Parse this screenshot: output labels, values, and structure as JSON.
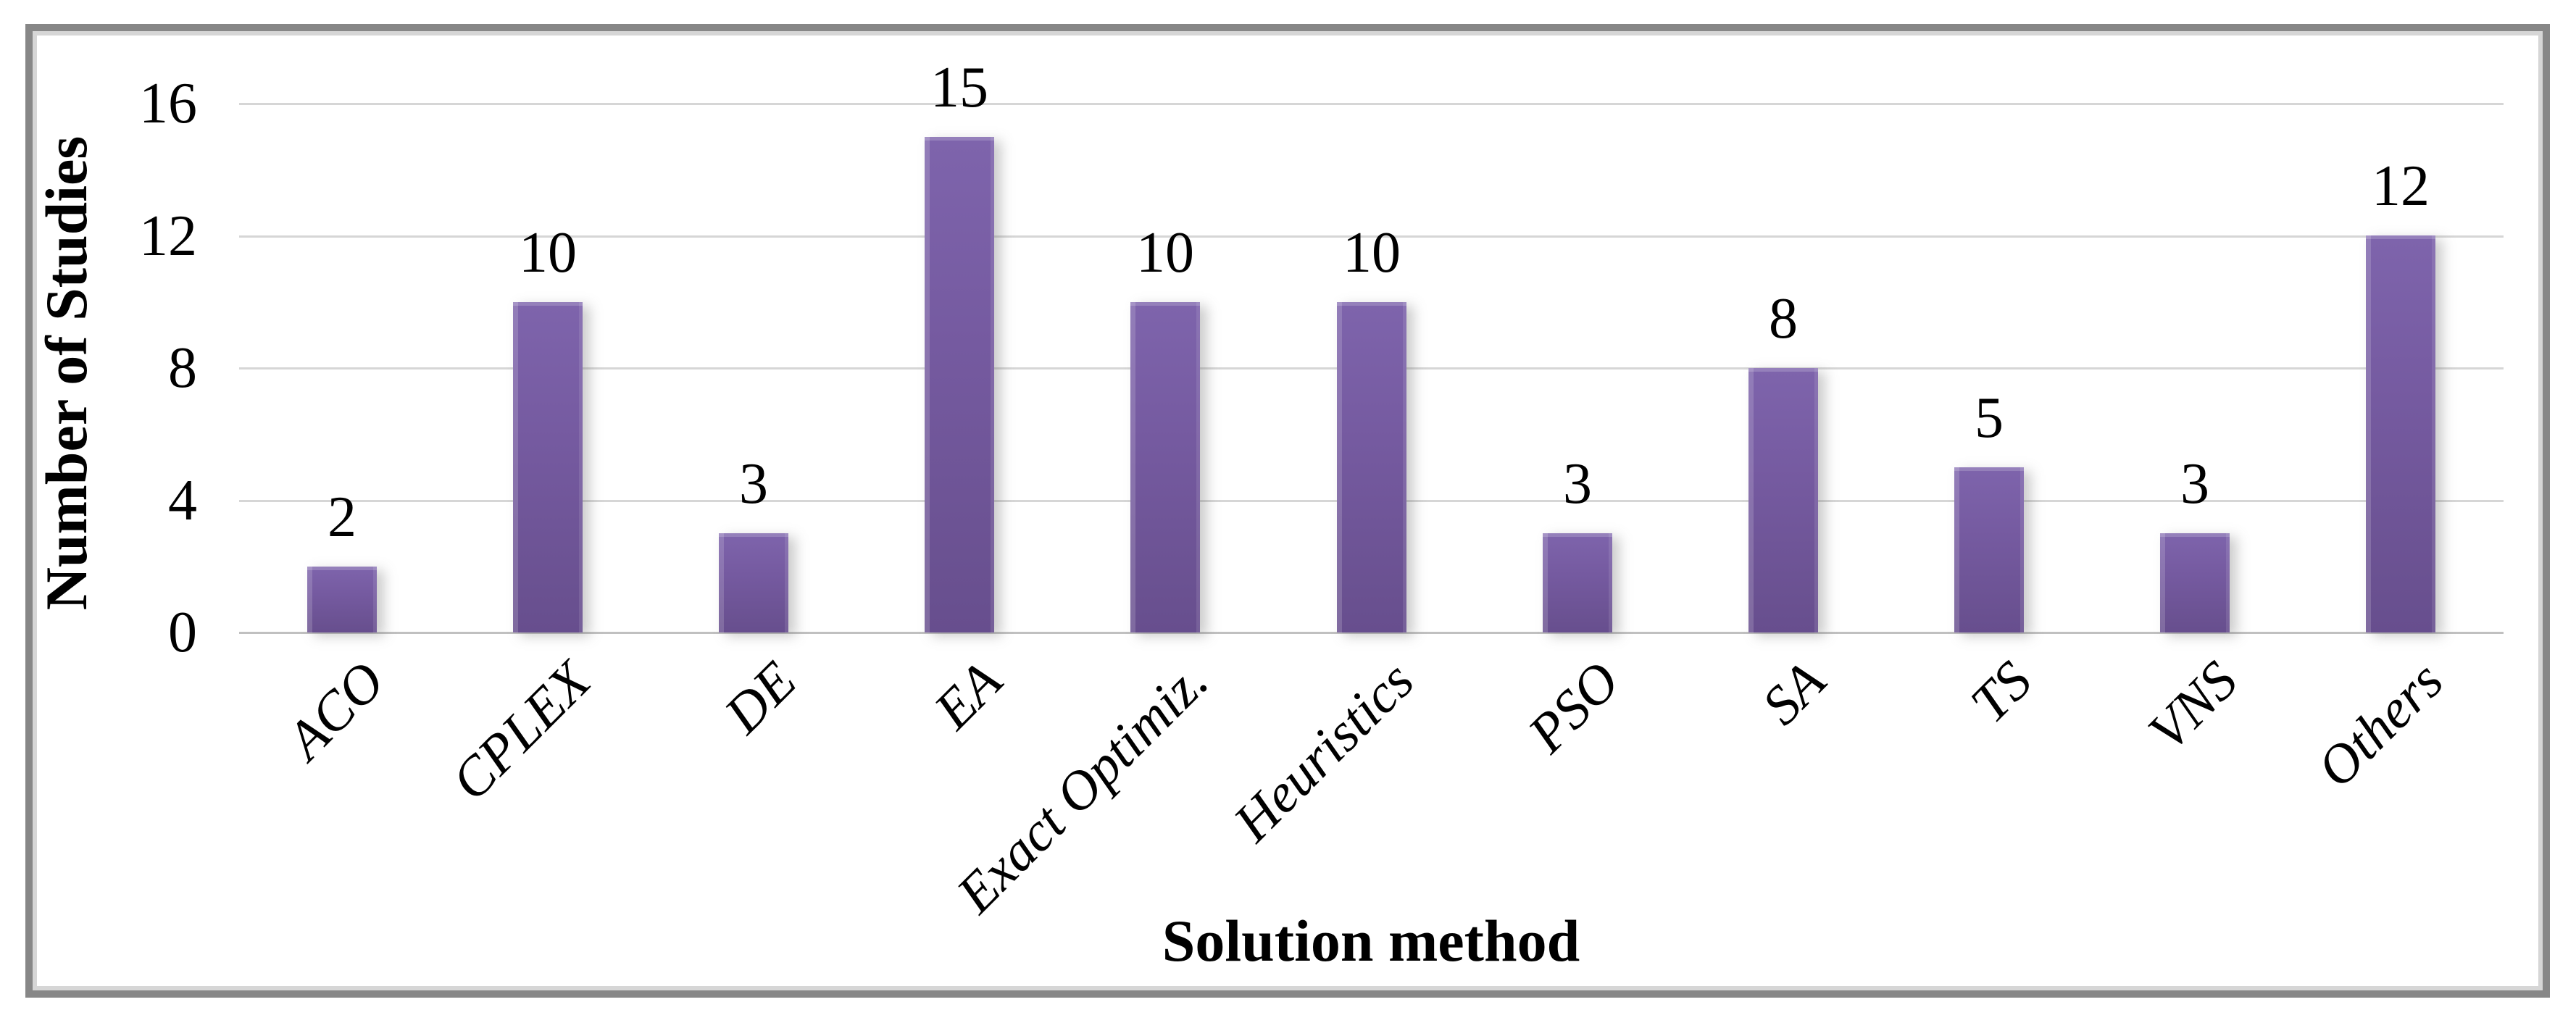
{
  "chart_data": {
    "type": "bar",
    "title": "",
    "categories": [
      "ACO",
      "CPLEX",
      "DE",
      "EA",
      "Exact Optimiz.",
      "Heuristics",
      "PSO",
      "SA",
      "TS",
      "VNS",
      "Others"
    ],
    "values": [
      2,
      10,
      3,
      15,
      10,
      10,
      3,
      8,
      5,
      3,
      12
    ],
    "xlabel": "Solution method",
    "ylabel": "Number of Studies",
    "ylim": [
      0,
      16
    ],
    "yticks": [
      0,
      4,
      8,
      12,
      16
    ],
    "grid": true,
    "legend_position": "none",
    "colors": {
      "bar_top": "#7e64ac",
      "bar_bottom": "#674e8e",
      "gridline": "#d6d6d6",
      "axis_line": "#c0c0c0",
      "text": "#000000",
      "frame_border": "#878787",
      "frame_inner": "#d6d6d6",
      "background": "#ffffff"
    }
  }
}
